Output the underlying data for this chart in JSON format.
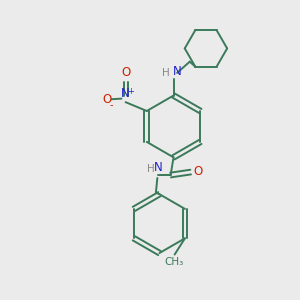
{
  "background_color": "#ebebeb",
  "bond_color": "#3a7a5a",
  "N_color": "#2222cc",
  "O_color": "#cc2200",
  "H_color": "#888888",
  "line_width": 1.4,
  "figsize": [
    3.0,
    3.0
  ],
  "dpi": 100,
  "xlim": [
    0,
    10
  ],
  "ylim": [
    0,
    10
  ]
}
